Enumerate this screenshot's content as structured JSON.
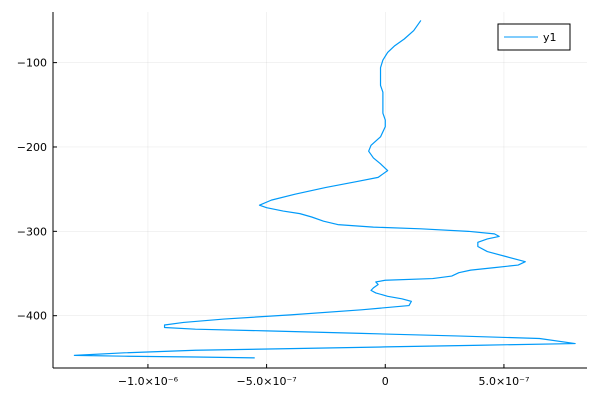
{
  "chart_data": {
    "type": "line",
    "title": "",
    "xlabel": "",
    "ylabel": "",
    "xlim": [
      -1.4e-06,
      8.5e-07
    ],
    "ylim": [
      -462,
      -40
    ],
    "grid": true,
    "legend_position": "top-right",
    "x_ticks": [
      {
        "value": -1e-06,
        "label": "−1.0×10⁻⁶"
      },
      {
        "value": -5e-07,
        "label": "−5.0×10⁻⁷"
      },
      {
        "value": 0,
        "label": "0"
      },
      {
        "value": 5e-07,
        "label": "5.0×10⁻⁷"
      }
    ],
    "y_ticks": [
      {
        "value": -100,
        "label": "−100"
      },
      {
        "value": -200,
        "label": "−200"
      },
      {
        "value": -300,
        "label": "−300"
      },
      {
        "value": -400,
        "label": "−400"
      }
    ],
    "series": [
      {
        "name": "y1",
        "color": "#009AF9",
        "points": [
          [
            1.5e-07,
            -50
          ],
          [
            1.2e-07,
            -62
          ],
          [
            8e-08,
            -72
          ],
          [
            4e-08,
            -80
          ],
          [
            1e-08,
            -88
          ],
          [
            -1e-08,
            -97
          ],
          [
            -2e-08,
            -106
          ],
          [
            -2e-08,
            -117
          ],
          [
            -2e-08,
            -127
          ],
          [
            -1e-08,
            -135
          ],
          [
            -1e-08,
            -142
          ],
          [
            -1e-08,
            -150
          ],
          [
            -1e-08,
            -160
          ],
          [
            0,
            -168
          ],
          [
            0,
            -176
          ],
          [
            -2e-08,
            -188
          ],
          [
            -6e-08,
            -198
          ],
          [
            -7e-08,
            -205
          ],
          [
            -5e-08,
            -213
          ],
          [
            -2e-08,
            -220
          ],
          [
            1e-08,
            -228
          ],
          [
            -3e-08,
            -236
          ],
          [
            -1.2e-07,
            -241
          ],
          [
            -2.5e-07,
            -248
          ],
          [
            -3.8e-07,
            -256
          ],
          [
            -4.8e-07,
            -263
          ],
          [
            -5.3e-07,
            -269
          ],
          [
            -5e-07,
            -272
          ],
          [
            -4.3e-07,
            -276
          ],
          [
            -3.6e-07,
            -279
          ],
          [
            -3.1e-07,
            -283
          ],
          [
            -2.6e-07,
            -288
          ],
          [
            -2e-07,
            -292
          ],
          [
            -5e-08,
            -295
          ],
          [
            1.5e-07,
            -297
          ],
          [
            3.5e-07,
            -300
          ],
          [
            4.6e-07,
            -303
          ],
          [
            4.8e-07,
            -306
          ],
          [
            4.3e-07,
            -309
          ],
          [
            3.9e-07,
            -313
          ],
          [
            3.9e-07,
            -318
          ],
          [
            4.3e-07,
            -324
          ],
          [
            5.1e-07,
            -330
          ],
          [
            5.9e-07,
            -336
          ],
          [
            5.6e-07,
            -340
          ],
          [
            4.6e-07,
            -343
          ],
          [
            3.6e-07,
            -346
          ],
          [
            3.1e-07,
            -349
          ],
          [
            2.8e-07,
            -353
          ],
          [
            2e-07,
            -356
          ],
          [
            0,
            -358
          ],
          [
            -4e-08,
            -360
          ],
          [
            -3e-08,
            -363
          ],
          [
            -5e-08,
            -367
          ],
          [
            -6e-08,
            -370
          ],
          [
            -4e-08,
            -373
          ],
          [
            1e-08,
            -377
          ],
          [
            7e-08,
            -380
          ],
          [
            1.1e-07,
            -383
          ],
          [
            1e-07,
            -388
          ],
          [
            -1e-07,
            -393
          ],
          [
            -4e-07,
            -399
          ],
          [
            -6.8e-07,
            -404
          ],
          [
            -8.5e-07,
            -408
          ],
          [
            -9.3e-07,
            -411
          ],
          [
            -9.3e-07,
            -414
          ],
          [
            -8e-07,
            -416
          ],
          [
            -5e-07,
            -418
          ],
          [
            -1e-07,
            -421
          ],
          [
            3e-07,
            -424
          ],
          [
            6.5e-07,
            -427
          ],
          [
            8e-07,
            -433
          ],
          [
            4e-07,
            -435
          ],
          [
            0,
            -437
          ],
          [
            -4e-07,
            -439
          ],
          [
            -8e-07,
            -441
          ],
          [
            -1.1e-06,
            -444
          ],
          [
            -1.31e-06,
            -447
          ],
          [
            -1.1e-06,
            -448
          ],
          [
            -8e-07,
            -449
          ],
          [
            -5.5e-07,
            -450
          ]
        ]
      }
    ]
  }
}
